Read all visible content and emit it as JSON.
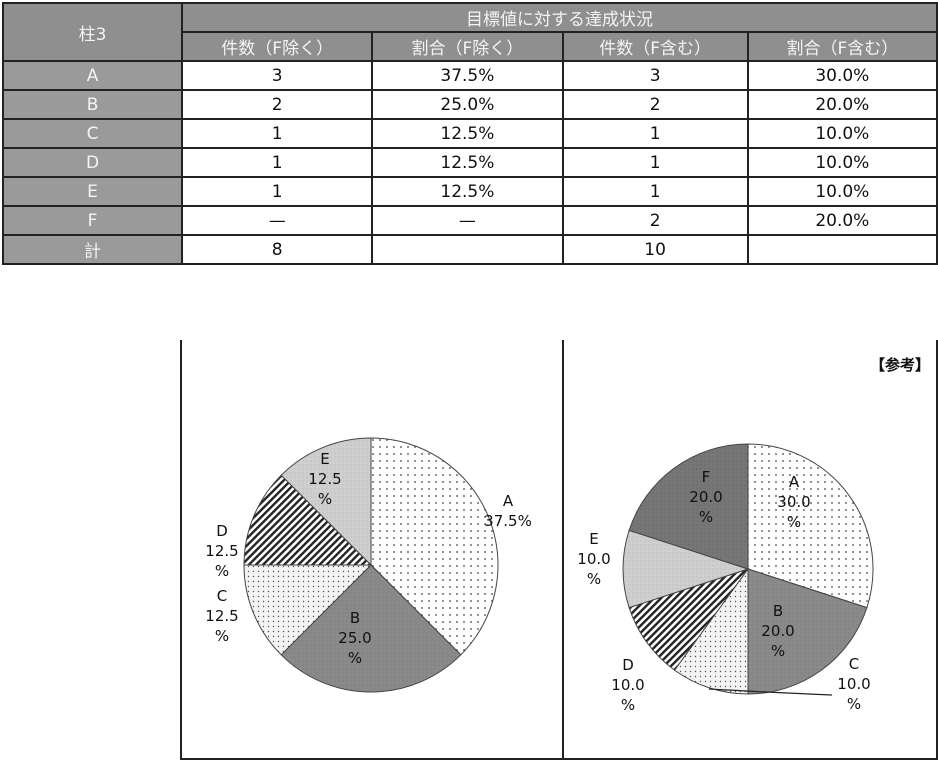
{
  "table": {
    "corner_label": "柱3",
    "group_header": "目標値に対する達成状況",
    "columns": [
      "件数（F除く）",
      "割合（F除く）",
      "件数（F含む）",
      "割合（F含む）"
    ],
    "rows": [
      {
        "label": "A",
        "cells": [
          "3",
          "37.5%",
          "3",
          "30.0%"
        ]
      },
      {
        "label": "B",
        "cells": [
          "2",
          "25.0%",
          "2",
          "20.0%"
        ]
      },
      {
        "label": "C",
        "cells": [
          "1",
          "12.5%",
          "1",
          "10.0%"
        ]
      },
      {
        "label": "D",
        "cells": [
          "1",
          "12.5%",
          "1",
          "10.0%"
        ]
      },
      {
        "label": "E",
        "cells": [
          "1",
          "12.5%",
          "1",
          "10.0%"
        ]
      },
      {
        "label": "F",
        "cells": [
          "—",
          "—",
          "2",
          "20.0%"
        ]
      },
      {
        "label": "計",
        "cells": [
          "8",
          "",
          "10",
          ""
        ]
      }
    ]
  },
  "reference_label": "【参考】",
  "chart_data": [
    {
      "type": "pie",
      "categories": [
        "A",
        "B",
        "C",
        "D",
        "E"
      ],
      "values": [
        37.5,
        25.0,
        12.5,
        12.5,
        12.5
      ],
      "labels": [
        [
          "A",
          "37.5%"
        ],
        [
          "B",
          "25.0",
          "%"
        ],
        [
          "C",
          "12.5",
          "%"
        ],
        [
          "D",
          "12.5",
          "%"
        ],
        [
          "E",
          "12.5",
          "%"
        ]
      ]
    },
    {
      "type": "pie",
      "categories": [
        "A",
        "B",
        "C",
        "D",
        "E",
        "F"
      ],
      "values": [
        30.0,
        20.0,
        10.0,
        10.0,
        10.0,
        20.0
      ],
      "labels": [
        [
          "A",
          "30.0",
          "%"
        ],
        [
          "B",
          "20.0",
          "%"
        ],
        [
          "C",
          "10.0",
          "%"
        ],
        [
          "D",
          "10.0",
          "%"
        ],
        [
          "E",
          "10.0",
          "%"
        ],
        [
          "F",
          "20.0",
          "%"
        ]
      ]
    }
  ]
}
